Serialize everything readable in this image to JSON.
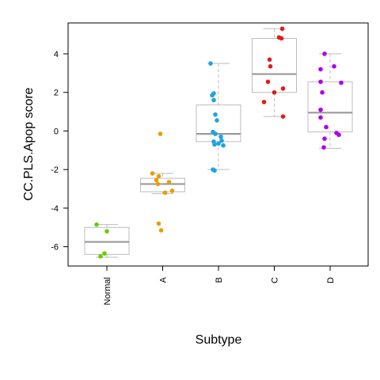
{
  "chart_data": {
    "type": "box",
    "title": "",
    "xlabel": "Subtype",
    "ylabel": "CC.PLS.Apop score",
    "categories": [
      "Normal",
      "A",
      "B",
      "C",
      "D"
    ],
    "ylim": [
      -7,
      5.6
    ],
    "yticks": [
      -6,
      -4,
      -2,
      0,
      2,
      4
    ],
    "colors": [
      "#66cc00",
      "#e69f00",
      "#1fa3e0",
      "#e31a1c",
      "#b000ee"
    ],
    "boxes": [
      {
        "category": "Normal",
        "min": -6.55,
        "q1": -6.4,
        "median": -5.75,
        "q3": -5.0,
        "max": -4.85
      },
      {
        "category": "A",
        "min": -3.25,
        "q1": -3.15,
        "median": -2.75,
        "q3": -2.45,
        "max": -2.2
      },
      {
        "category": "B",
        "min": -2.0,
        "q1": -0.55,
        "median": -0.15,
        "q3": 1.35,
        "max": 3.5
      },
      {
        "category": "C",
        "min": 0.75,
        "q1": 2.0,
        "median": 2.95,
        "q3": 4.8,
        "max": 5.3
      },
      {
        "category": "D",
        "min": -0.9,
        "q1": -0.05,
        "median": 0.95,
        "q3": 2.55,
        "max": 4.0
      }
    ],
    "points": [
      {
        "category": "Normal",
        "values": [
          -4.85,
          -5.2,
          -6.35,
          -6.5
        ]
      },
      {
        "category": "A",
        "values": [
          -0.15,
          -2.2,
          -2.35,
          -2.55,
          -2.65,
          -2.75,
          -3.1,
          -3.2,
          -4.8,
          -5.15
        ]
      },
      {
        "category": "B",
        "values": [
          3.5,
          1.95,
          1.85,
          1.6,
          0.85,
          0.55,
          -0.05,
          -0.15,
          -0.3,
          -0.5,
          -0.55,
          -0.65,
          -0.7,
          -0.75,
          -2.0,
          -2.05
        ]
      },
      {
        "category": "C",
        "values": [
          5.3,
          4.85,
          4.8,
          3.7,
          3.35,
          2.55,
          2.2,
          2.0,
          1.5,
          0.75
        ]
      },
      {
        "category": "D",
        "values": [
          4.0,
          3.35,
          3.2,
          2.55,
          2.5,
          2.0,
          1.1,
          0.7,
          0.2,
          -0.1,
          -0.2,
          -0.4,
          -0.85
        ]
      }
    ]
  }
}
